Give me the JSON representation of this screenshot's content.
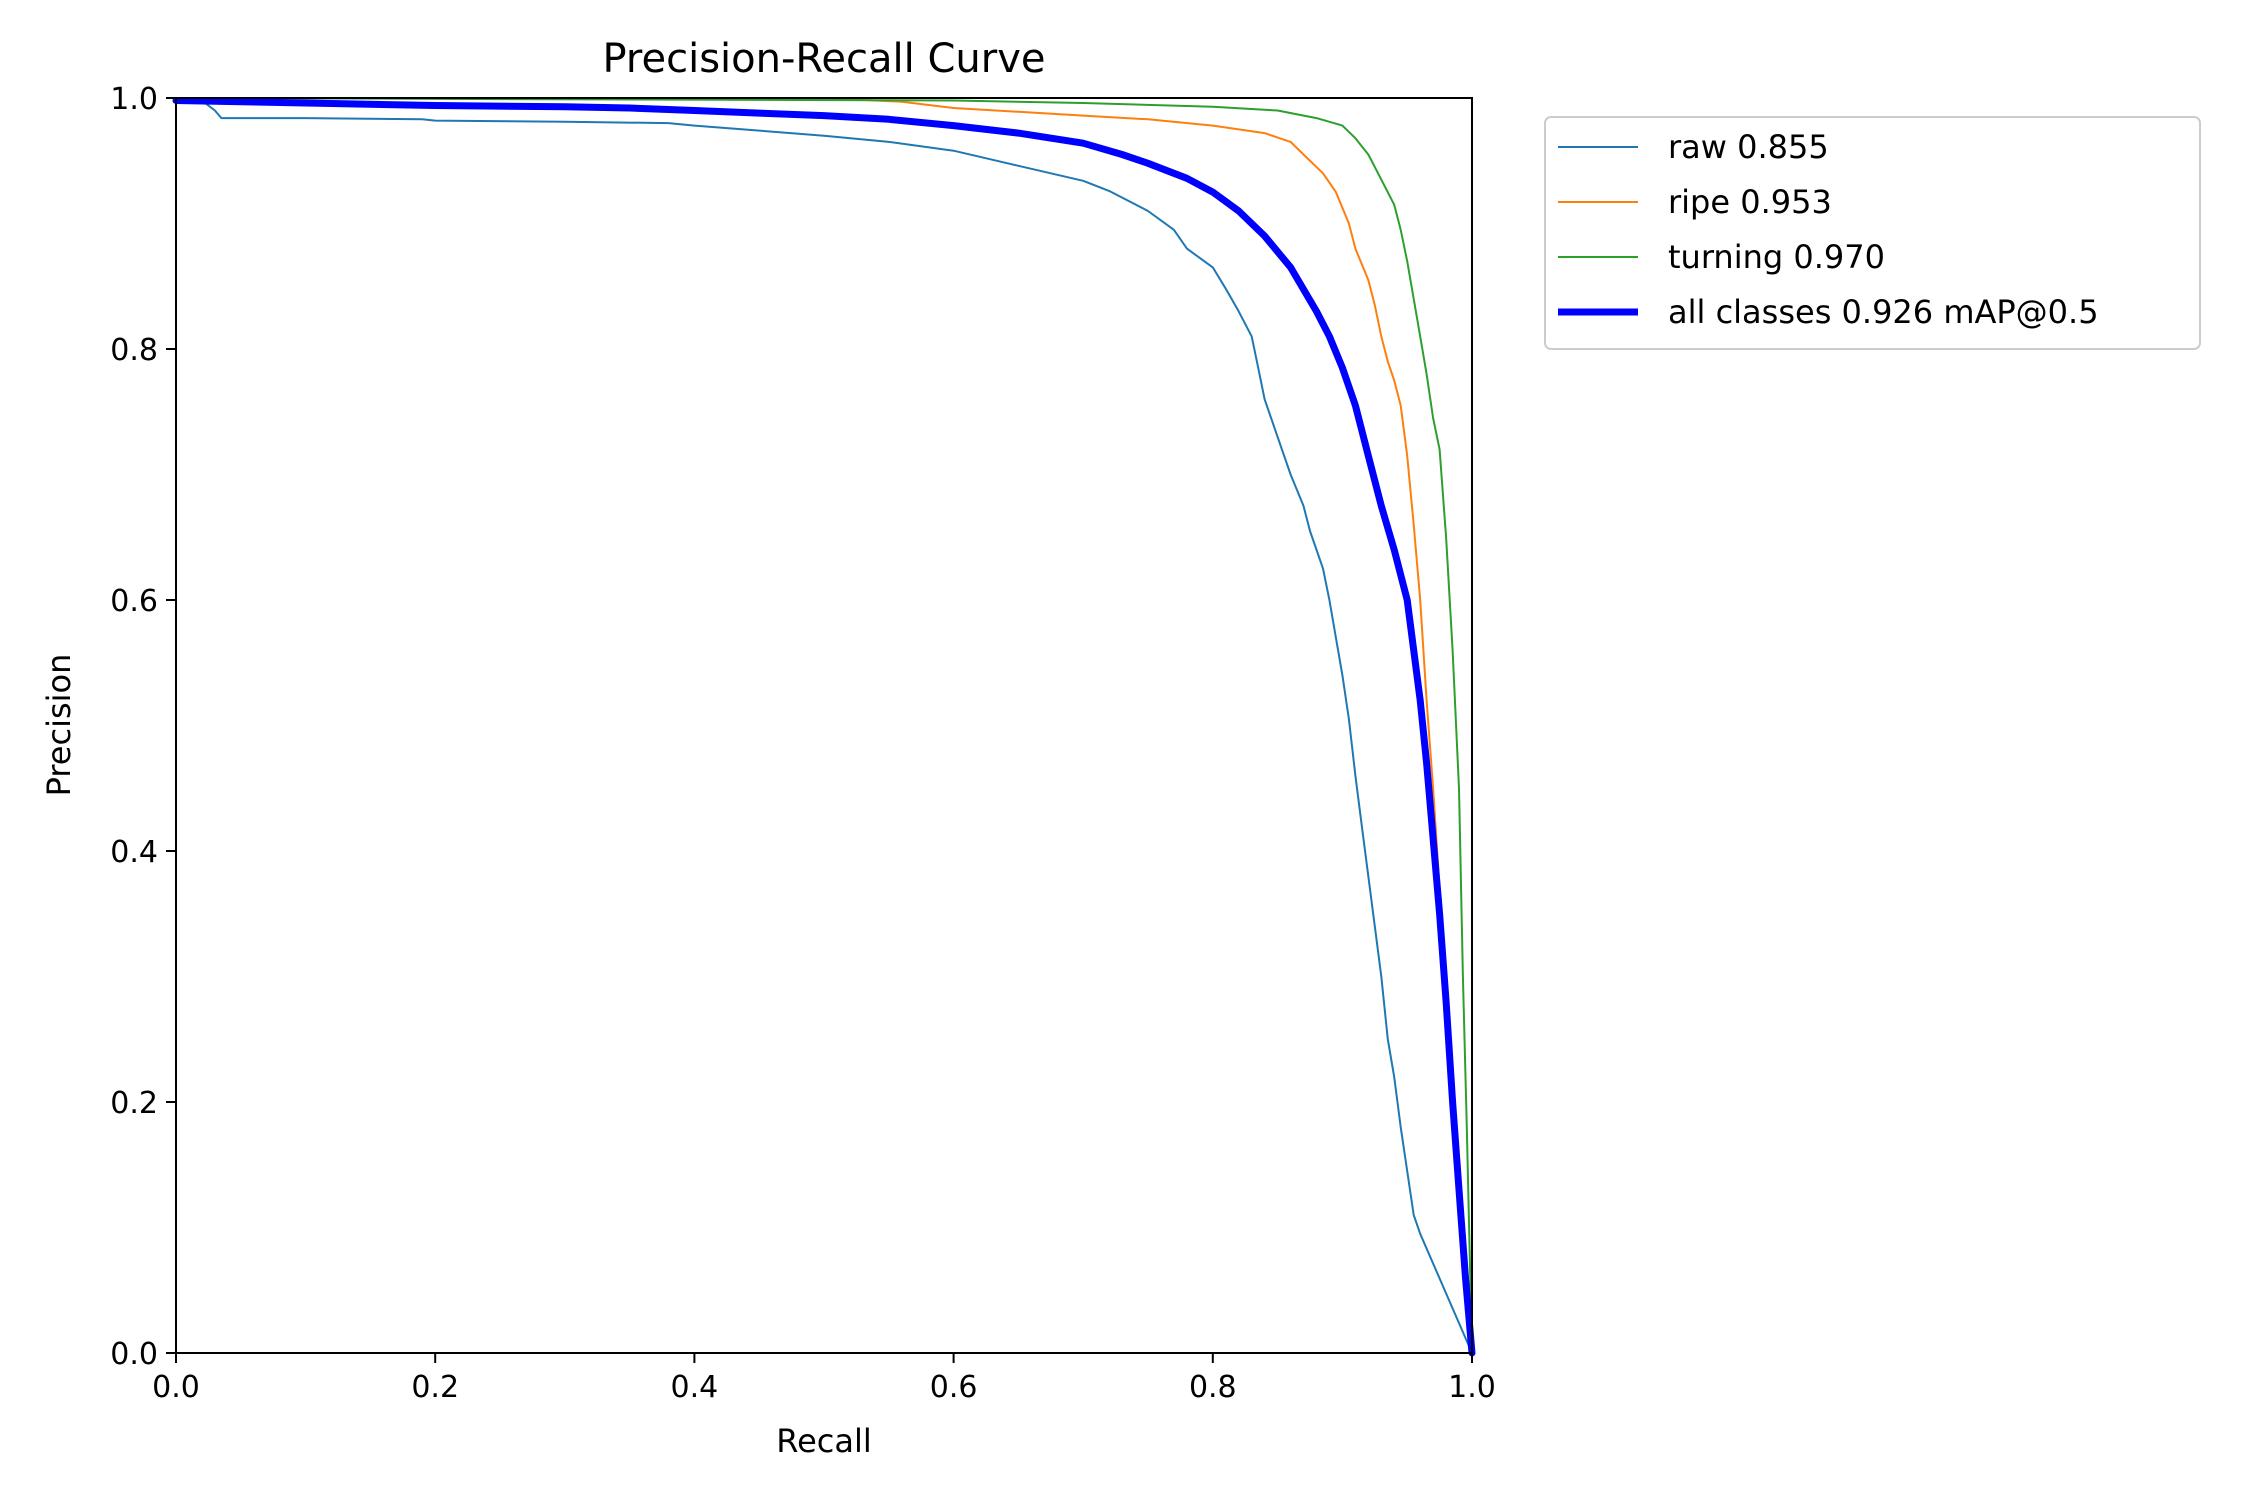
{
  "chart_data": {
    "type": "line",
    "title": "Precision-Recall Curve",
    "xlabel": "Recall",
    "ylabel": "Precision",
    "xlim": [
      0.0,
      1.0
    ],
    "ylim": [
      0.0,
      1.0
    ],
    "xticks": [
      "0.0",
      "0.2",
      "0.4",
      "0.6",
      "0.8",
      "1.0"
    ],
    "yticks": [
      "0.0",
      "0.2",
      "0.4",
      "0.6",
      "0.8",
      "1.0"
    ],
    "grid": false,
    "legend_position": "outside-top-right",
    "series": [
      {
        "name": "raw 0.855",
        "color": "#1f77b4",
        "width": 2,
        "points": [
          [
            0.0,
            1.0
          ],
          [
            0.02,
            0.998
          ],
          [
            0.03,
            0.99
          ],
          [
            0.035,
            0.984
          ],
          [
            0.1,
            0.984
          ],
          [
            0.19,
            0.983
          ],
          [
            0.2,
            0.982
          ],
          [
            0.3,
            0.981
          ],
          [
            0.38,
            0.98
          ],
          [
            0.4,
            0.978
          ],
          [
            0.45,
            0.974
          ],
          [
            0.5,
            0.97
          ],
          [
            0.55,
            0.965
          ],
          [
            0.6,
            0.958
          ],
          [
            0.65,
            0.946
          ],
          [
            0.7,
            0.934
          ],
          [
            0.72,
            0.926
          ],
          [
            0.75,
            0.91
          ],
          [
            0.77,
            0.895
          ],
          [
            0.78,
            0.88
          ],
          [
            0.8,
            0.865
          ],
          [
            0.81,
            0.848
          ],
          [
            0.82,
            0.83
          ],
          [
            0.83,
            0.81
          ],
          [
            0.835,
            0.785
          ],
          [
            0.84,
            0.76
          ],
          [
            0.85,
            0.73
          ],
          [
            0.86,
            0.7
          ],
          [
            0.87,
            0.675
          ],
          [
            0.875,
            0.655
          ],
          [
            0.885,
            0.625
          ],
          [
            0.89,
            0.6
          ],
          [
            0.895,
            0.57
          ],
          [
            0.9,
            0.54
          ],
          [
            0.905,
            0.505
          ],
          [
            0.91,
            0.46
          ],
          [
            0.915,
            0.42
          ],
          [
            0.92,
            0.38
          ],
          [
            0.925,
            0.34
          ],
          [
            0.93,
            0.3
          ],
          [
            0.935,
            0.25
          ],
          [
            0.94,
            0.22
          ],
          [
            0.945,
            0.18
          ],
          [
            0.95,
            0.145
          ],
          [
            0.955,
            0.11
          ],
          [
            0.96,
            0.095
          ],
          [
            1.0,
            0.0
          ]
        ]
      },
      {
        "name": "ripe 0.953",
        "color": "#ff7f0e",
        "width": 2,
        "points": [
          [
            0.0,
            1.0
          ],
          [
            0.5,
            1.0
          ],
          [
            0.56,
            0.997
          ],
          [
            0.6,
            0.992
          ],
          [
            0.65,
            0.989
          ],
          [
            0.7,
            0.986
          ],
          [
            0.75,
            0.983
          ],
          [
            0.8,
            0.978
          ],
          [
            0.84,
            0.972
          ],
          [
            0.86,
            0.965
          ],
          [
            0.87,
            0.955
          ],
          [
            0.885,
            0.94
          ],
          [
            0.895,
            0.925
          ],
          [
            0.905,
            0.9
          ],
          [
            0.91,
            0.88
          ],
          [
            0.92,
            0.855
          ],
          [
            0.925,
            0.835
          ],
          [
            0.93,
            0.81
          ],
          [
            0.935,
            0.79
          ],
          [
            0.94,
            0.775
          ],
          [
            0.945,
            0.755
          ],
          [
            0.95,
            0.715
          ],
          [
            0.955,
            0.66
          ],
          [
            0.96,
            0.6
          ],
          [
            0.965,
            0.52
          ],
          [
            0.97,
            0.45
          ],
          [
            0.975,
            0.37
          ],
          [
            0.98,
            0.3
          ],
          [
            0.985,
            0.2
          ],
          [
            0.99,
            0.13
          ],
          [
            0.995,
            0.06
          ],
          [
            1.0,
            0.0
          ]
        ]
      },
      {
        "name": "turning 0.970",
        "color": "#2ca02c",
        "width": 2,
        "points": [
          [
            0.0,
            1.0
          ],
          [
            0.6,
            0.998
          ],
          [
            0.7,
            0.996
          ],
          [
            0.8,
            0.993
          ],
          [
            0.85,
            0.99
          ],
          [
            0.88,
            0.984
          ],
          [
            0.9,
            0.978
          ],
          [
            0.91,
            0.968
          ],
          [
            0.92,
            0.955
          ],
          [
            0.93,
            0.935
          ],
          [
            0.94,
            0.915
          ],
          [
            0.945,
            0.895
          ],
          [
            0.95,
            0.87
          ],
          [
            0.955,
            0.84
          ],
          [
            0.96,
            0.81
          ],
          [
            0.965,
            0.78
          ],
          [
            0.97,
            0.745
          ],
          [
            0.975,
            0.72
          ],
          [
            0.98,
            0.65
          ],
          [
            0.985,
            0.56
          ],
          [
            0.99,
            0.45
          ],
          [
            0.993,
            0.3
          ],
          [
            0.996,
            0.18
          ],
          [
            1.0,
            0.0
          ]
        ]
      },
      {
        "name": "all classes 0.926 mAP@0.5",
        "color": "#0000ff",
        "width": 7,
        "points": [
          [
            0.0,
            0.998
          ],
          [
            0.1,
            0.996
          ],
          [
            0.2,
            0.994
          ],
          [
            0.3,
            0.993
          ],
          [
            0.35,
            0.992
          ],
          [
            0.4,
            0.99
          ],
          [
            0.45,
            0.988
          ],
          [
            0.5,
            0.986
          ],
          [
            0.55,
            0.983
          ],
          [
            0.6,
            0.978
          ],
          [
            0.65,
            0.972
          ],
          [
            0.7,
            0.964
          ],
          [
            0.73,
            0.955
          ],
          [
            0.75,
            0.948
          ],
          [
            0.78,
            0.936
          ],
          [
            0.8,
            0.925
          ],
          [
            0.82,
            0.91
          ],
          [
            0.84,
            0.89
          ],
          [
            0.86,
            0.865
          ],
          [
            0.88,
            0.83
          ],
          [
            0.89,
            0.81
          ],
          [
            0.9,
            0.785
          ],
          [
            0.91,
            0.755
          ],
          [
            0.92,
            0.715
          ],
          [
            0.93,
            0.675
          ],
          [
            0.94,
            0.64
          ],
          [
            0.95,
            0.6
          ],
          [
            0.955,
            0.56
          ],
          [
            0.96,
            0.52
          ],
          [
            0.965,
            0.47
          ],
          [
            0.97,
            0.41
          ],
          [
            0.975,
            0.35
          ],
          [
            0.98,
            0.28
          ],
          [
            0.985,
            0.2
          ],
          [
            0.99,
            0.13
          ],
          [
            0.995,
            0.06
          ],
          [
            1.0,
            0.0
          ]
        ]
      }
    ]
  }
}
